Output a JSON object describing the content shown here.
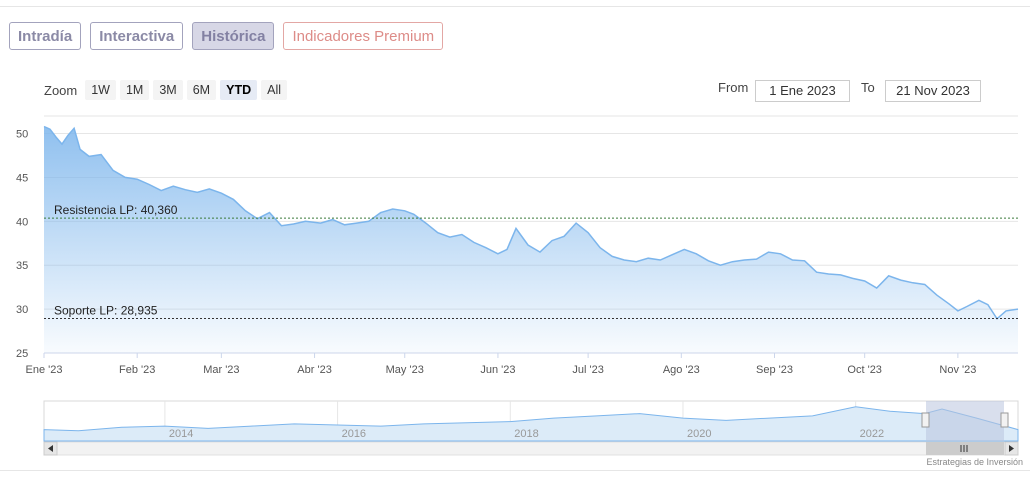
{
  "tabs": [
    {
      "label": "Intradía"
    },
    {
      "label": "Interactiva"
    },
    {
      "label": "Histórica"
    },
    {
      "label": "Indicadores Premium"
    }
  ],
  "zoom": {
    "label": "Zoom",
    "buttons": [
      "1W",
      "1M",
      "3M",
      "6M",
      "YTD",
      "All"
    ],
    "active": "YTD"
  },
  "range": {
    "from_label": "From",
    "from_value": "1 Ene 2023",
    "to_label": "To",
    "to_value": "21 Nov 2023"
  },
  "credit": "Estrategias de Inversión",
  "colors": {
    "line": "#7cb5ec",
    "area_top": "#7cb5ec",
    "resistance": "#3a7a3a",
    "support": "#333333",
    "nav_mask": "#b9c4de"
  },
  "chart_data": {
    "type": "area",
    "ylim": [
      25,
      52
    ],
    "y_ticks": [
      25,
      30,
      35,
      40,
      45,
      50
    ],
    "x_range": [
      "2023-01-01",
      "2023-11-21"
    ],
    "x_ticks": [
      {
        "date": "2023-01-01",
        "label": "Ene '23"
      },
      {
        "date": "2023-02-01",
        "label": "Feb '23"
      },
      {
        "date": "2023-03-01",
        "label": "Mar '23"
      },
      {
        "date": "2023-04-01",
        "label": "Abr '23"
      },
      {
        "date": "2023-05-01",
        "label": "May '23"
      },
      {
        "date": "2023-06-01",
        "label": "Jun '23"
      },
      {
        "date": "2023-07-01",
        "label": "Jul '23"
      },
      {
        "date": "2023-08-01",
        "label": "Ago '23"
      },
      {
        "date": "2023-09-01",
        "label": "Sep '23"
      },
      {
        "date": "2023-10-01",
        "label": "Oct '23"
      },
      {
        "date": "2023-11-01",
        "label": "Nov '23"
      }
    ],
    "series": [
      {
        "values": [
          [
            "2023-01-01",
            50.8
          ],
          [
            "2023-01-03",
            50.5
          ],
          [
            "2023-01-05",
            49.6
          ],
          [
            "2023-01-07",
            48.8
          ],
          [
            "2023-01-09",
            49.8
          ],
          [
            "2023-01-11",
            50.6
          ],
          [
            "2023-01-13",
            48.2
          ],
          [
            "2023-01-16",
            47.4
          ],
          [
            "2023-01-20",
            47.6
          ],
          [
            "2023-01-24",
            45.8
          ],
          [
            "2023-01-28",
            45.0
          ],
          [
            "2023-02-01",
            44.8
          ],
          [
            "2023-02-05",
            44.2
          ],
          [
            "2023-02-09",
            43.5
          ],
          [
            "2023-02-13",
            44.0
          ],
          [
            "2023-02-17",
            43.6
          ],
          [
            "2023-02-21",
            43.3
          ],
          [
            "2023-02-25",
            43.7
          ],
          [
            "2023-03-01",
            43.2
          ],
          [
            "2023-03-05",
            42.5
          ],
          [
            "2023-03-09",
            41.2
          ],
          [
            "2023-03-13",
            40.3
          ],
          [
            "2023-03-17",
            41.0
          ],
          [
            "2023-03-21",
            39.5
          ],
          [
            "2023-03-25",
            39.7
          ],
          [
            "2023-03-29",
            40.0
          ],
          [
            "2023-04-03",
            39.8
          ],
          [
            "2023-04-07",
            40.2
          ],
          [
            "2023-04-11",
            39.6
          ],
          [
            "2023-04-15",
            39.8
          ],
          [
            "2023-04-19",
            40.0
          ],
          [
            "2023-04-23",
            41.0
          ],
          [
            "2023-04-27",
            41.4
          ],
          [
            "2023-05-01",
            41.2
          ],
          [
            "2023-05-04",
            40.8
          ],
          [
            "2023-05-08",
            39.8
          ],
          [
            "2023-05-12",
            38.7
          ],
          [
            "2023-05-16",
            38.2
          ],
          [
            "2023-05-20",
            38.5
          ],
          [
            "2023-05-24",
            37.6
          ],
          [
            "2023-05-28",
            37.0
          ],
          [
            "2023-06-01",
            36.3
          ],
          [
            "2023-06-04",
            36.8
          ],
          [
            "2023-06-07",
            39.2
          ],
          [
            "2023-06-11",
            37.3
          ],
          [
            "2023-06-15",
            36.5
          ],
          [
            "2023-06-19",
            37.8
          ],
          [
            "2023-06-23",
            38.3
          ],
          [
            "2023-06-27",
            39.8
          ],
          [
            "2023-07-01",
            38.7
          ],
          [
            "2023-07-05",
            37.0
          ],
          [
            "2023-07-09",
            36.0
          ],
          [
            "2023-07-13",
            35.6
          ],
          [
            "2023-07-17",
            35.4
          ],
          [
            "2023-07-21",
            35.8
          ],
          [
            "2023-07-25",
            35.6
          ],
          [
            "2023-07-29",
            36.2
          ],
          [
            "2023-08-02",
            36.8
          ],
          [
            "2023-08-06",
            36.3
          ],
          [
            "2023-08-10",
            35.5
          ],
          [
            "2023-08-14",
            35.0
          ],
          [
            "2023-08-18",
            35.4
          ],
          [
            "2023-08-22",
            35.6
          ],
          [
            "2023-08-26",
            35.7
          ],
          [
            "2023-08-30",
            36.5
          ],
          [
            "2023-09-03",
            36.3
          ],
          [
            "2023-09-07",
            35.6
          ],
          [
            "2023-09-11",
            35.5
          ],
          [
            "2023-09-15",
            34.2
          ],
          [
            "2023-09-19",
            34.0
          ],
          [
            "2023-09-23",
            33.9
          ],
          [
            "2023-09-27",
            33.5
          ],
          [
            "2023-10-01",
            33.2
          ],
          [
            "2023-10-05",
            32.4
          ],
          [
            "2023-10-09",
            33.8
          ],
          [
            "2023-10-13",
            33.3
          ],
          [
            "2023-10-17",
            33.0
          ],
          [
            "2023-10-21",
            32.8
          ],
          [
            "2023-10-25",
            31.6
          ],
          [
            "2023-10-29",
            30.6
          ],
          [
            "2023-11-01",
            29.8
          ],
          [
            "2023-11-04",
            30.3
          ],
          [
            "2023-11-08",
            31.0
          ],
          [
            "2023-11-11",
            30.5
          ],
          [
            "2023-11-14",
            28.9
          ],
          [
            "2023-11-17",
            29.8
          ],
          [
            "2023-11-21",
            30.0
          ]
        ]
      }
    ],
    "annotations": [
      {
        "type": "hline",
        "label": "Resistencia LP: 40,360",
        "value": 40.36
      },
      {
        "type": "hline",
        "label": "Soporte LP: 28,935",
        "value": 28.935
      }
    ],
    "grid": true,
    "navigator": {
      "tick_labels": [
        "2014",
        "2016",
        "2018",
        "2020",
        "2022"
      ],
      "profile": [
        [
          2012.6,
          30
        ],
        [
          2013.0,
          29
        ],
        [
          2013.5,
          32
        ],
        [
          2014.0,
          33
        ],
        [
          2014.5,
          31
        ],
        [
          2015.0,
          33
        ],
        [
          2015.5,
          35
        ],
        [
          2016.0,
          34
        ],
        [
          2016.5,
          33
        ],
        [
          2017.0,
          35
        ],
        [
          2017.5,
          36
        ],
        [
          2018.0,
          37
        ],
        [
          2018.5,
          40
        ],
        [
          2019.0,
          42
        ],
        [
          2019.5,
          44
        ],
        [
          2020.0,
          40
        ],
        [
          2020.5,
          38
        ],
        [
          2021.0,
          40
        ],
        [
          2021.5,
          42
        ],
        [
          2022.0,
          50
        ],
        [
          2022.4,
          46
        ],
        [
          2022.8,
          44
        ],
        [
          2023.0,
          48
        ],
        [
          2023.4,
          40
        ],
        [
          2023.88,
          30
        ]
      ]
    }
  }
}
